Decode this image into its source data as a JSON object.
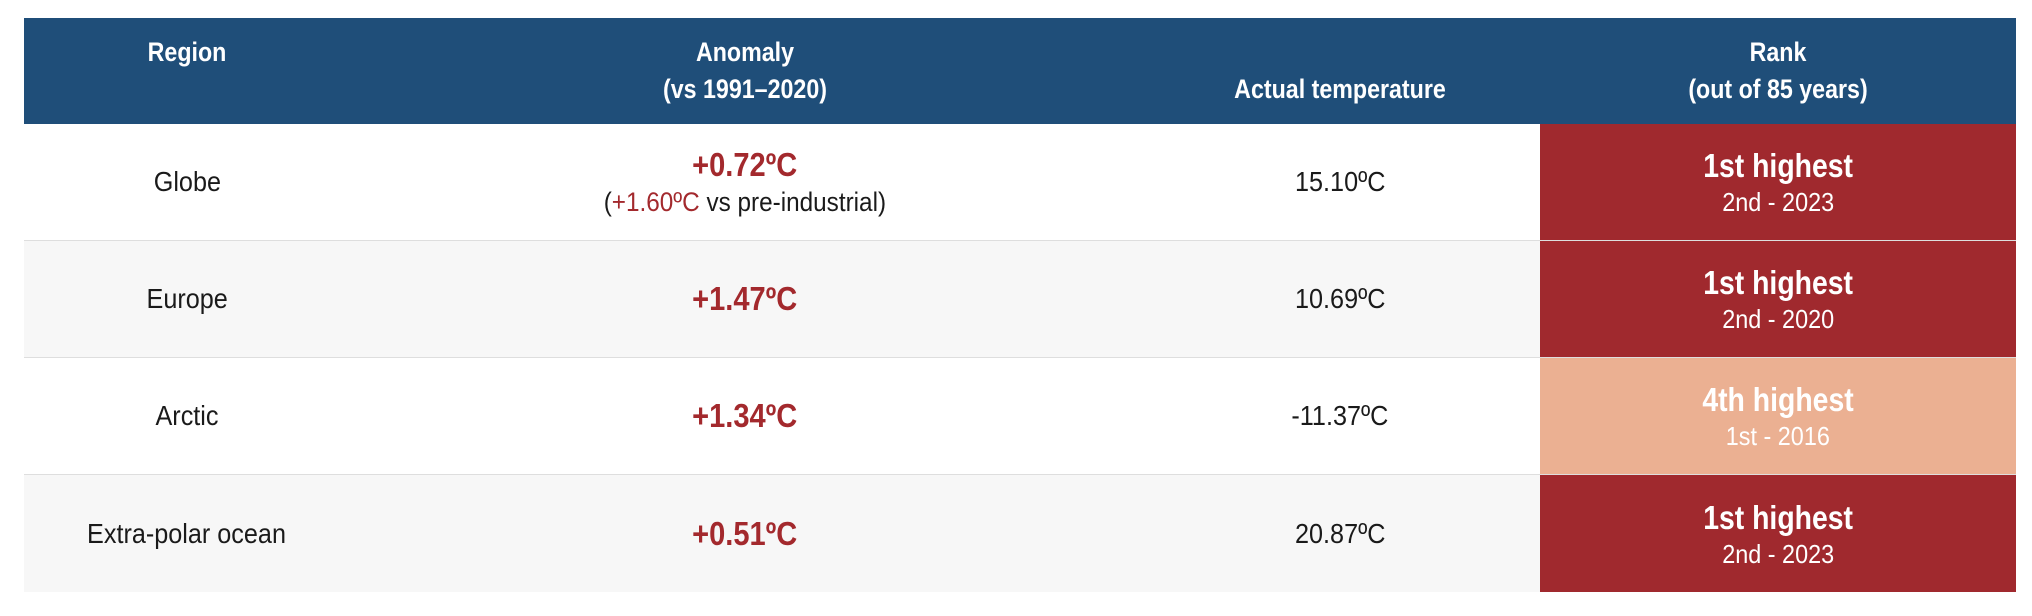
{
  "header": {
    "region": "Region",
    "anomaly_line1": "Anomaly",
    "anomaly_line2": "(vs 1991–2020)",
    "actual": "Actual temperature",
    "rank_line1": "Rank",
    "rank_line2": "(out of 85 years)"
  },
  "rows": [
    {
      "region": "Globe",
      "anomaly": "+0.72ºC",
      "anomaly_note_open": "(",
      "anomaly_note_value": "+1.60ºC",
      "anomaly_note_rest": " vs pre-industrial)",
      "actual": "15.10ºC",
      "rank": "1st highest",
      "rank_sub": "2nd - 2023",
      "rank_color": "#a0292e"
    },
    {
      "region": "Europe",
      "anomaly": "+1.47ºC",
      "actual": "10.69ºC",
      "rank": "1st highest",
      "rank_sub": "2nd - 2020",
      "rank_color": "#a0292e"
    },
    {
      "region": "Arctic",
      "anomaly": "+1.34ºC",
      "actual": "-11.37ºC",
      "rank": "4th highest",
      "rank_sub": "1st - 2016",
      "rank_color": "#ebb092"
    },
    {
      "region": "Extra-polar ocean",
      "anomaly": "+0.51ºC",
      "actual": "20.87ºC",
      "rank": "1st highest",
      "rank_sub": "2nd - 2023",
      "rank_color": "#a0292e"
    }
  ],
  "colors": {
    "header_bg": "#1f4e79",
    "anomaly_text": "#a3292d"
  }
}
